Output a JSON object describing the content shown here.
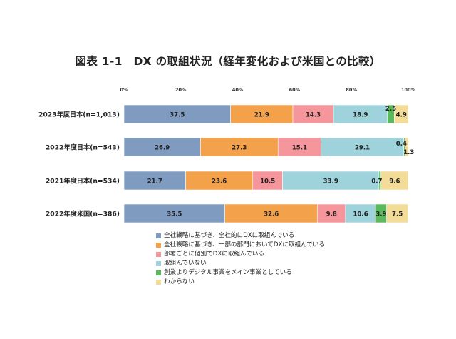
{
  "title": "図表 1-1　DX の取組状況（経年変化および米国との比較）",
  "colors": [
    "#7f9bc0",
    "#f3a14b",
    "#f4969b",
    "#9fd3dc",
    "#5cb85c",
    "#f2dc98"
  ],
  "chart_data": {
    "type": "bar",
    "orientation": "horizontal",
    "stacked": true,
    "xlim": [
      0,
      100
    ],
    "x_ticks": [
      "0%",
      "20%",
      "40%",
      "60%",
      "80%",
      "100%"
    ],
    "categories": [
      "2023年度日本(n=1,013)",
      "2022年度日本(n=543)",
      "2021年度日本(n=534)",
      "2022年度米国(n=386)"
    ],
    "series": [
      {
        "name": "全社戦略に基づき、全社的にDXに取組んでいる",
        "values": [
          37.5,
          26.9,
          21.7,
          35.5
        ]
      },
      {
        "name": "全社戦略に基づき、一部の部門においてDXに取組んでいる",
        "values": [
          21.9,
          27.3,
          23.6,
          32.6
        ]
      },
      {
        "name": "部署ごとに個別でDXに取組んでいる",
        "values": [
          14.3,
          15.1,
          10.5,
          9.8
        ]
      },
      {
        "name": "取組んでいない",
        "values": [
          18.9,
          29.1,
          33.9,
          10.6
        ]
      },
      {
        "name": "創業よりデジタル事業をメイン事業としている",
        "values": [
          2.5,
          0.4,
          0.7,
          3.9
        ]
      },
      {
        "name": "わからない",
        "values": [
          4.9,
          1.3,
          9.6,
          7.5
        ]
      }
    ],
    "legend_position": "bottom",
    "grid": false
  }
}
